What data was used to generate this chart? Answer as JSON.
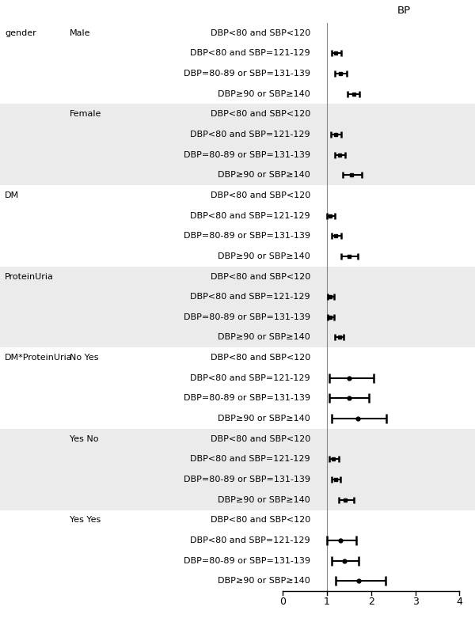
{
  "title": "BP",
  "xticks": [
    0,
    1,
    2,
    3,
    4
  ],
  "vline_x": 1.0,
  "rows": [
    {
      "group": "gender",
      "sub": "Male",
      "bp": "DBP<80 and SBP<120",
      "pt": null,
      "lo": null,
      "hi": null,
      "bg": 0
    },
    {
      "group": "",
      "sub": "",
      "bp": "DBP<80 and SBP=121-129",
      "pt": 1.2,
      "lo": 1.1,
      "hi": 1.32,
      "bg": 0
    },
    {
      "group": "",
      "sub": "",
      "bp": "DBP=80-89 or SBP=131-139",
      "pt": 1.3,
      "lo": 1.18,
      "hi": 1.44,
      "bg": 0
    },
    {
      "group": "",
      "sub": "",
      "bp": "DBP≥90 or SBP≥140",
      "pt": 1.6,
      "lo": 1.46,
      "hi": 1.74,
      "bg": 0
    },
    {
      "group": "",
      "sub": "Female",
      "bp": "DBP<80 and SBP<120",
      "pt": null,
      "lo": null,
      "hi": null,
      "bg": 1
    },
    {
      "group": "",
      "sub": "",
      "bp": "DBP<80 and SBP=121-129",
      "pt": 1.2,
      "lo": 1.09,
      "hi": 1.32,
      "bg": 1
    },
    {
      "group": "",
      "sub": "",
      "bp": "DBP=80-89 or SBP=131-139",
      "pt": 1.28,
      "lo": 1.17,
      "hi": 1.42,
      "bg": 1
    },
    {
      "group": "",
      "sub": "",
      "bp": "DBP≥90 or SBP≥140",
      "pt": 1.55,
      "lo": 1.36,
      "hi": 1.78,
      "bg": 1
    },
    {
      "group": "DM",
      "sub": "",
      "bp": "DBP<80 and SBP<120",
      "pt": null,
      "lo": null,
      "hi": null,
      "bg": 0
    },
    {
      "group": "",
      "sub": "",
      "bp": "DBP<80 and SBP=121-129",
      "pt": 1.08,
      "lo": 1.0,
      "hi": 1.18,
      "bg": 0
    },
    {
      "group": "",
      "sub": "",
      "bp": "DBP=80-89 or SBP=131-139",
      "pt": 1.2,
      "lo": 1.1,
      "hi": 1.32,
      "bg": 0
    },
    {
      "group": "",
      "sub": "",
      "bp": "DBP≥90 or SBP≥140",
      "pt": 1.5,
      "lo": 1.32,
      "hi": 1.7,
      "bg": 0
    },
    {
      "group": "ProteinUria",
      "sub": "",
      "bp": "DBP<80 and SBP<120",
      "pt": null,
      "lo": null,
      "hi": null,
      "bg": 1
    },
    {
      "group": "",
      "sub": "",
      "bp": "DBP<80 and SBP=121-129",
      "pt": 1.08,
      "lo": 1.02,
      "hi": 1.16,
      "bg": 1
    },
    {
      "group": "",
      "sub": "",
      "bp": "DBP=80-89 or SBP=131-139",
      "pt": 1.08,
      "lo": 1.02,
      "hi": 1.16,
      "bg": 1
    },
    {
      "group": "",
      "sub": "",
      "bp": "DBP≥90 or SBP≥140",
      "pt": 1.28,
      "lo": 1.18,
      "hi": 1.38,
      "bg": 1
    },
    {
      "group": "DM*ProteinUria",
      "sub": "No Yes",
      "bp": "DBP<80 and SBP<120",
      "pt": null,
      "lo": null,
      "hi": null,
      "bg": 0
    },
    {
      "group": "",
      "sub": "",
      "bp": "DBP<80 and SBP=121-129",
      "pt": 1.5,
      "lo": 1.05,
      "hi": 2.05,
      "bg": 0
    },
    {
      "group": "",
      "sub": "",
      "bp": "DBP=80-89 or SBP=131-139",
      "pt": 1.5,
      "lo": 1.05,
      "hi": 1.95,
      "bg": 0
    },
    {
      "group": "",
      "sub": "",
      "bp": "DBP≥90 or SBP≥140",
      "pt": 1.7,
      "lo": 1.1,
      "hi": 2.35,
      "bg": 0
    },
    {
      "group": "",
      "sub": "Yes No",
      "bp": "DBP<80 and SBP<120",
      "pt": null,
      "lo": null,
      "hi": null,
      "bg": 1
    },
    {
      "group": "",
      "sub": "",
      "bp": "DBP<80 and SBP=121-129",
      "pt": 1.15,
      "lo": 1.05,
      "hi": 1.26,
      "bg": 1
    },
    {
      "group": "",
      "sub": "",
      "bp": "DBP=80-89 or SBP=131-139",
      "pt": 1.2,
      "lo": 1.1,
      "hi": 1.3,
      "bg": 1
    },
    {
      "group": "",
      "sub": "",
      "bp": "DBP≥90 or SBP≥140",
      "pt": 1.42,
      "lo": 1.26,
      "hi": 1.6,
      "bg": 1
    },
    {
      "group": "",
      "sub": "Yes Yes",
      "bp": "DBP<80 and SBP<120",
      "pt": null,
      "lo": null,
      "hi": null,
      "bg": 0
    },
    {
      "group": "",
      "sub": "",
      "bp": "DBP<80 and SBP=121-129",
      "pt": 1.3,
      "lo": 1.0,
      "hi": 1.66,
      "bg": 0
    },
    {
      "group": "",
      "sub": "",
      "bp": "DBP=80-89 or SBP=131-139",
      "pt": 1.4,
      "lo": 1.1,
      "hi": 1.72,
      "bg": 0
    },
    {
      "group": "",
      "sub": "",
      "bp": "DBP≥90 or SBP≥140",
      "pt": 1.72,
      "lo": 1.2,
      "hi": 2.32,
      "bg": 0
    }
  ],
  "bg_color": "#ebebeb",
  "fontsize": 8.0,
  "title_fontsize": 9.5
}
